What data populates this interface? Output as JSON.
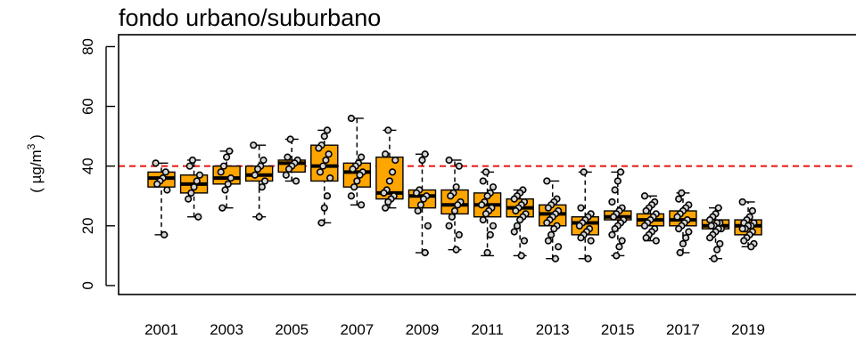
{
  "chart_data": {
    "type": "boxplot",
    "title": "fondo urbano/suburbano",
    "ylabel_prefix": "( µg/m",
    "ylabel_sup": "3",
    "ylabel_suffix": " )",
    "ylim": [
      -3,
      84
    ],
    "yticks": [
      0,
      20,
      40,
      60,
      80
    ],
    "xtick_labels": [
      "2001",
      "2003",
      "2005",
      "2007",
      "2009",
      "2011",
      "2013",
      "2015",
      "2017",
      "2019"
    ],
    "reference_line": {
      "value": 40,
      "color": "#e8201f",
      "style": "dashed"
    },
    "box_color": "#ffa500",
    "grid": false,
    "categories": [
      "2001",
      "2002",
      "2003",
      "2004",
      "2005",
      "2006",
      "2007",
      "2008",
      "2009",
      "2010",
      "2011",
      "2012",
      "2013",
      "2014",
      "2015",
      "2016",
      "2017",
      "2018",
      "2019"
    ],
    "boxes": [
      {
        "year": "2001",
        "whisker_low": 17,
        "q1": 33,
        "median": 36,
        "q3": 38,
        "whisker_high": 41,
        "points": [
          41,
          38,
          36,
          35,
          34,
          32,
          17
        ]
      },
      {
        "year": "2002",
        "whisker_low": 23,
        "q1": 31,
        "median": 34,
        "q3": 37,
        "whisker_high": 42,
        "points": [
          42,
          40,
          37,
          35,
          33,
          31,
          29,
          23
        ]
      },
      {
        "year": "2003",
        "whisker_low": 26,
        "q1": 34,
        "median": 36,
        "q3": 40,
        "whisker_high": 45,
        "points": [
          45,
          43,
          40,
          38,
          36,
          34,
          32,
          26
        ]
      },
      {
        "year": "2004",
        "whisker_low": 23,
        "q1": 35,
        "median": 37,
        "q3": 40,
        "whisker_high": 47,
        "points": [
          47,
          42,
          40,
          39,
          37,
          35,
          33,
          23
        ]
      },
      {
        "year": "2005",
        "whisker_low": 35,
        "q1": 38,
        "median": 41,
        "q3": 42,
        "whisker_high": 49,
        "points": [
          49,
          43,
          42,
          41,
          40,
          39,
          37,
          35
        ]
      },
      {
        "year": "2006",
        "whisker_low": 21,
        "q1": 35,
        "median": 40,
        "q3": 47,
        "whisker_high": 52,
        "points": [
          52,
          50,
          47,
          46,
          44,
          42,
          40,
          38,
          36,
          30,
          26,
          21
        ]
      },
      {
        "year": "2007",
        "whisker_low": 27,
        "q1": 33,
        "median": 38,
        "q3": 41,
        "whisker_high": 56,
        "points": [
          56,
          43,
          41,
          40,
          39,
          38,
          37,
          35,
          33,
          30,
          27
        ]
      },
      {
        "year": "2008",
        "whisker_low": 26,
        "q1": 29,
        "median": 31,
        "q3": 43,
        "whisker_high": 52,
        "points": [
          52,
          44,
          42,
          38,
          35,
          32,
          31,
          30,
          29,
          28,
          26
        ]
      },
      {
        "year": "2009",
        "whisker_low": 11,
        "q1": 26,
        "median": 30,
        "q3": 32,
        "whisker_high": 44,
        "points": [
          44,
          42,
          32,
          31,
          30,
          29,
          27,
          25,
          20,
          11
        ]
      },
      {
        "year": "2010",
        "whisker_low": 12,
        "q1": 24,
        "median": 27,
        "q3": 32,
        "whisker_high": 42,
        "points": [
          42,
          40,
          33,
          31,
          30,
          28,
          27,
          25,
          23,
          20,
          17,
          12
        ]
      },
      {
        "year": "2011",
        "whisker_low": 10,
        "q1": 23,
        "median": 27,
        "q3": 31,
        "whisker_high": 38,
        "points": [
          38,
          35,
          33,
          31,
          30,
          28,
          27,
          26,
          25,
          24,
          22,
          20,
          17,
          11
        ]
      },
      {
        "year": "2012",
        "whisker_low": 10,
        "q1": 23,
        "median": 26,
        "q3": 29,
        "whisker_high": 32,
        "points": [
          32,
          31,
          30,
          29,
          28,
          27,
          26,
          25,
          24,
          23,
          22,
          20,
          18,
          15,
          10
        ]
      },
      {
        "year": "2013",
        "whisker_low": 9,
        "q1": 20,
        "median": 24,
        "q3": 27,
        "whisker_high": 35,
        "points": [
          35,
          29,
          28,
          27,
          26,
          25,
          24,
          23,
          22,
          21,
          20,
          19,
          17,
          15,
          13,
          9
        ]
      },
      {
        "year": "2014",
        "whisker_low": 9,
        "q1": 17,
        "median": 21,
        "q3": 23,
        "whisker_high": 38,
        "points": [
          38,
          26,
          24,
          23,
          22,
          21,
          20,
          19,
          18,
          17,
          16,
          15,
          9
        ]
      },
      {
        "year": "2015",
        "whisker_low": 10,
        "q1": 22,
        "median": 23,
        "q3": 25,
        "whisker_high": 38,
        "points": [
          38,
          35,
          32,
          28,
          26,
          25,
          24,
          23,
          22,
          21,
          20,
          19,
          17,
          15,
          13,
          10
        ]
      },
      {
        "year": "2016",
        "whisker_low": 15,
        "q1": 20,
        "median": 22,
        "q3": 24,
        "whisker_high": 30,
        "points": [
          30,
          28,
          27,
          26,
          25,
          24,
          23,
          22,
          21,
          20,
          19,
          18,
          17,
          16,
          15
        ]
      },
      {
        "year": "2017",
        "whisker_low": 11,
        "q1": 20,
        "median": 22,
        "q3": 25,
        "whisker_high": 31,
        "points": [
          31,
          29,
          27,
          26,
          25,
          24,
          23,
          22,
          21,
          20,
          19,
          18,
          16,
          14,
          11
        ]
      },
      {
        "year": "2018",
        "whisker_low": 9,
        "q1": 19,
        "median": 20,
        "q3": 22,
        "whisker_high": 26,
        "points": [
          26,
          24,
          23,
          22,
          21,
          21,
          20,
          20,
          19,
          19,
          18,
          17,
          16,
          14,
          12,
          9
        ]
      },
      {
        "year": "2019",
        "whisker_low": 13,
        "q1": 17,
        "median": 20,
        "q3": 22,
        "whisker_high": 28,
        "points": [
          28,
          25,
          23,
          22,
          21,
          21,
          20,
          20,
          19,
          19,
          18,
          17,
          16,
          15,
          14,
          13
        ]
      }
    ]
  }
}
